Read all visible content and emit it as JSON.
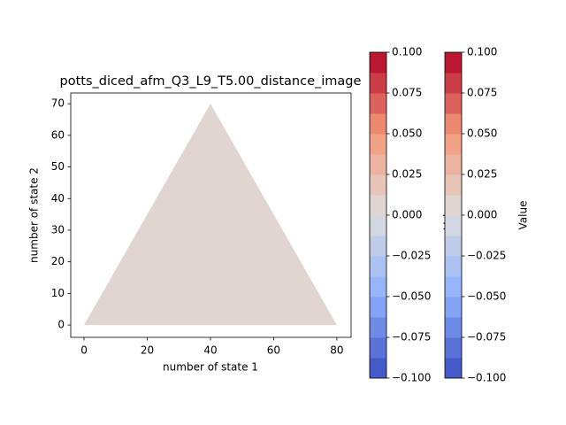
{
  "chart_data": {
    "type": "contour",
    "title": "potts_diced_afm_Q3_L9_T5.00_distance_image",
    "xlabel": "number of state 1",
    "ylabel": "number of state 2",
    "xlim": [
      -4.2,
      84.5
    ],
    "ylim": [
      -3.9,
      73.4
    ],
    "xticks": [
      0,
      20,
      40,
      60,
      80
    ],
    "yticks": [
      0,
      10,
      20,
      30,
      40,
      50,
      60,
      70
    ],
    "region": {
      "x": [
        0,
        80,
        40
      ],
      "y": [
        0,
        0,
        70
      ],
      "value": 0
    },
    "colorbars": [
      {
        "label": "Value",
        "lim": [
          -0.1,
          0.1
        ],
        "bands": 16,
        "cmap": [
          "#3b4cc0",
          "#8db0fe",
          "#dddddd",
          "#f49a7b",
          "#b40426"
        ],
        "ticks": [
          {
            "value": -0.1,
            "label": "−0.100"
          },
          {
            "value": -0.075,
            "label": "−0.075"
          },
          {
            "value": -0.05,
            "label": "−0.050"
          },
          {
            "value": -0.025,
            "label": "−0.025"
          },
          {
            "value": 0,
            "label": "0.000"
          },
          {
            "value": 0.025,
            "label": "0.025"
          },
          {
            "value": 0.05,
            "label": "0.050"
          },
          {
            "value": 0.075,
            "label": "0.075"
          },
          {
            "value": 0.1,
            "label": "0.100"
          }
        ]
      },
      {
        "label": "Value",
        "lim": [
          -0.1,
          0.1
        ],
        "bands": 16,
        "cmap": [
          "#3b4cc0",
          "#8db0fe",
          "#dddddd",
          "#f49a7b",
          "#b40426"
        ],
        "ticks": [
          {
            "value": -0.1,
            "label": "−0.100"
          },
          {
            "value": -0.075,
            "label": "−0.075"
          },
          {
            "value": -0.05,
            "label": "−0.050"
          },
          {
            "value": -0.025,
            "label": "−0.025"
          },
          {
            "value": 0,
            "label": "0.000"
          },
          {
            "value": 0.025,
            "label": "0.025"
          },
          {
            "value": 0.05,
            "label": "0.050"
          },
          {
            "value": 0.075,
            "label": "0.075"
          },
          {
            "value": 0.1,
            "label": "0.100"
          }
        ]
      }
    ]
  }
}
